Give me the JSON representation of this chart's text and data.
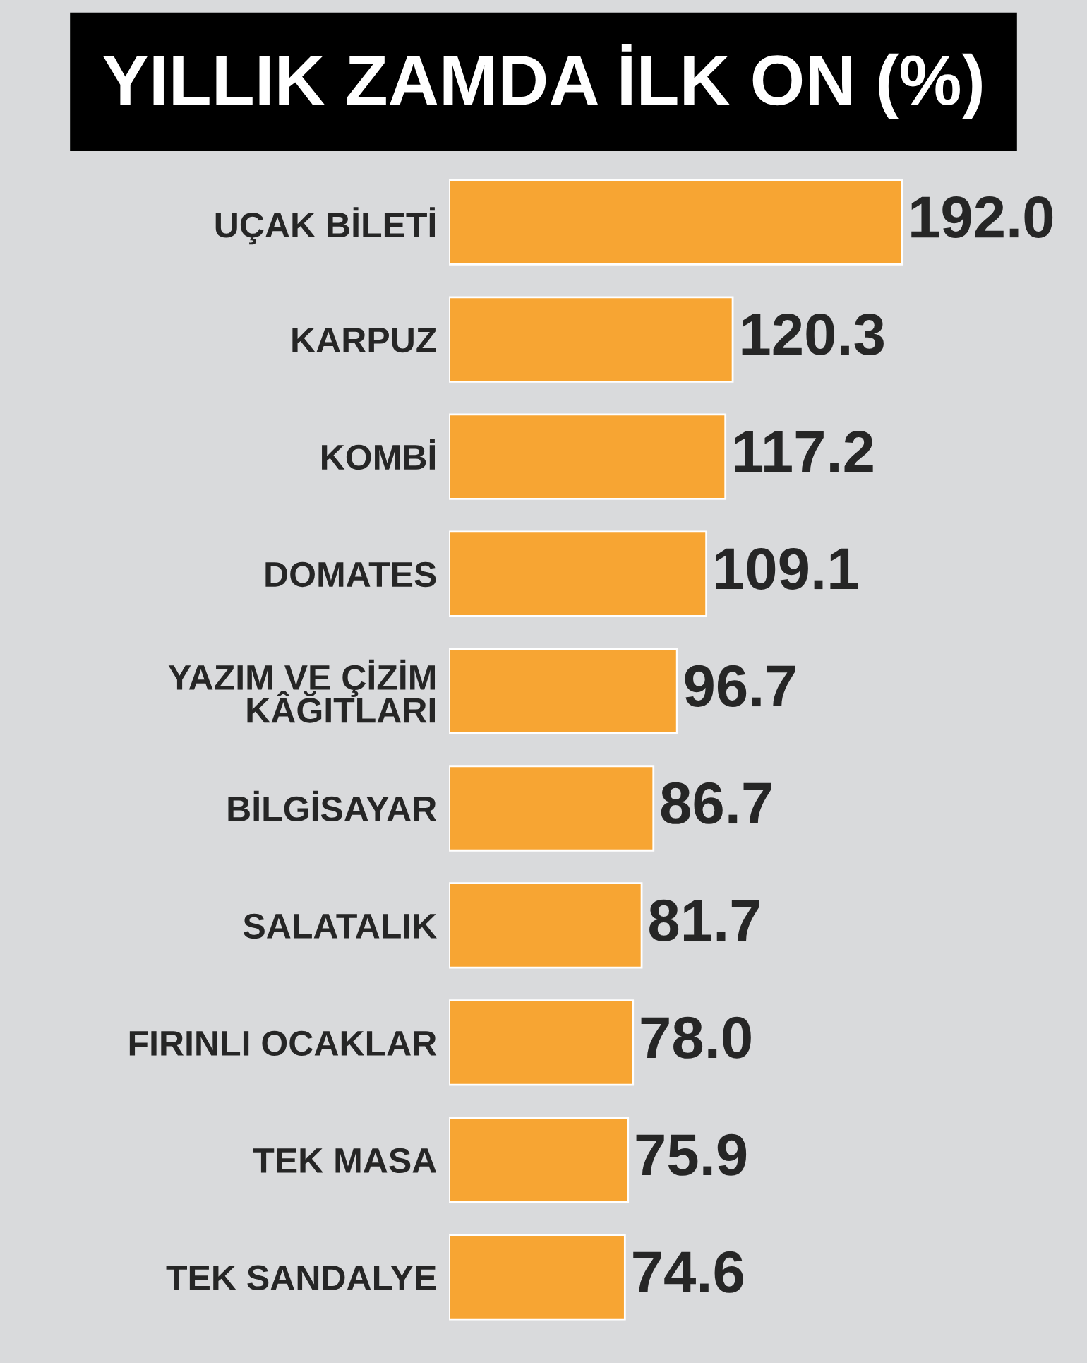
{
  "chart_data": {
    "type": "bar",
    "orientation": "horizontal",
    "title": "YILLIK ZAMDA İLK ON (%)",
    "categories": [
      "UÇAK BİLETİ",
      "KARPUZ",
      "KOMBİ",
      "DOMATES",
      "YAZIM VE ÇİZİM\nKÂĞITLARI",
      "BİLGİSAYAR",
      "SALATALIK",
      "FIRINLI OCAKLAR",
      "TEK MASA",
      "TEK SANDALYE"
    ],
    "values": [
      192.0,
      120.3,
      117.2,
      109.1,
      96.7,
      86.7,
      81.7,
      78.0,
      75.9,
      74.6
    ],
    "value_labels": [
      "192.0",
      "120.3",
      "117.2",
      "109.1",
      "96.7",
      "86.7",
      "81.7",
      "78.0",
      "75.9",
      "74.6"
    ],
    "color": "#f7a533",
    "grid": false,
    "legend": false
  }
}
